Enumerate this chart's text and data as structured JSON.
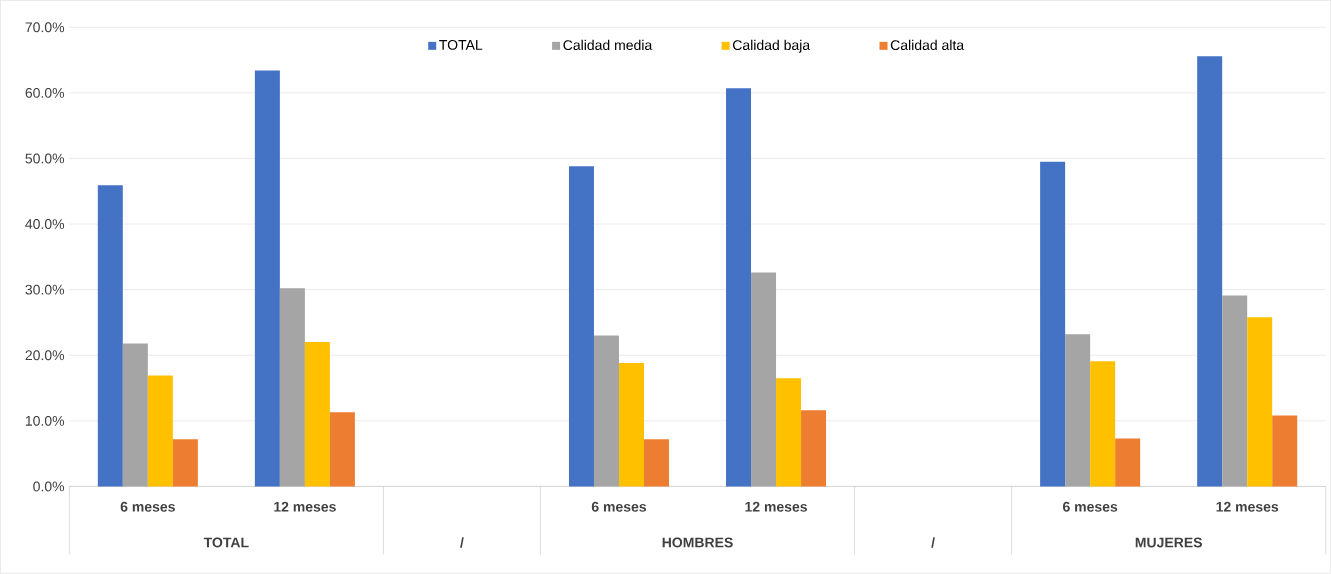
{
  "chart_data": {
    "type": "bar",
    "categories": [
      "6 meses",
      "12 meses",
      null,
      "6 meses",
      "12 meses",
      null,
      "6 meses",
      "12 meses"
    ],
    "series": [
      {
        "name": "TOTAL",
        "color": "#4472c4",
        "values": [
          45.9,
          63.4,
          null,
          48.8,
          60.7,
          null,
          49.5,
          65.6
        ]
      },
      {
        "name": "Calidad media",
        "color": "#a5a5a5",
        "values": [
          21.8,
          30.2,
          null,
          23.0,
          32.6,
          null,
          23.2,
          29.1
        ]
      },
      {
        "name": "Calidad baja",
        "color": "#ffc000",
        "values": [
          16.9,
          22.0,
          null,
          18.8,
          16.5,
          null,
          19.1,
          25.8
        ]
      },
      {
        "name": "Calidad alta",
        "color": "#ed7d31",
        "values": [
          7.2,
          11.3,
          null,
          7.2,
          11.6,
          null,
          7.3,
          10.8
        ]
      }
    ],
    "annotations": [
      "TOTAL",
      "/",
      "HOMBRES",
      "/",
      "MUJERES"
    ],
    "ylim": [
      0,
      70
    ],
    "yticks": [
      {
        "value": 0,
        "label": "0.0%"
      },
      {
        "value": 10,
        "label": "10.0%"
      },
      {
        "value": 20,
        "label": "20.0%"
      },
      {
        "value": 30,
        "label": "30.0%"
      },
      {
        "value": 40,
        "label": "40.0%"
      },
      {
        "value": 50,
        "label": "50.0%"
      },
      {
        "value": 60,
        "label": "60.0%"
      },
      {
        "value": 70,
        "label": "70.0%"
      }
    ],
    "grid": "y",
    "legend": "top"
  }
}
